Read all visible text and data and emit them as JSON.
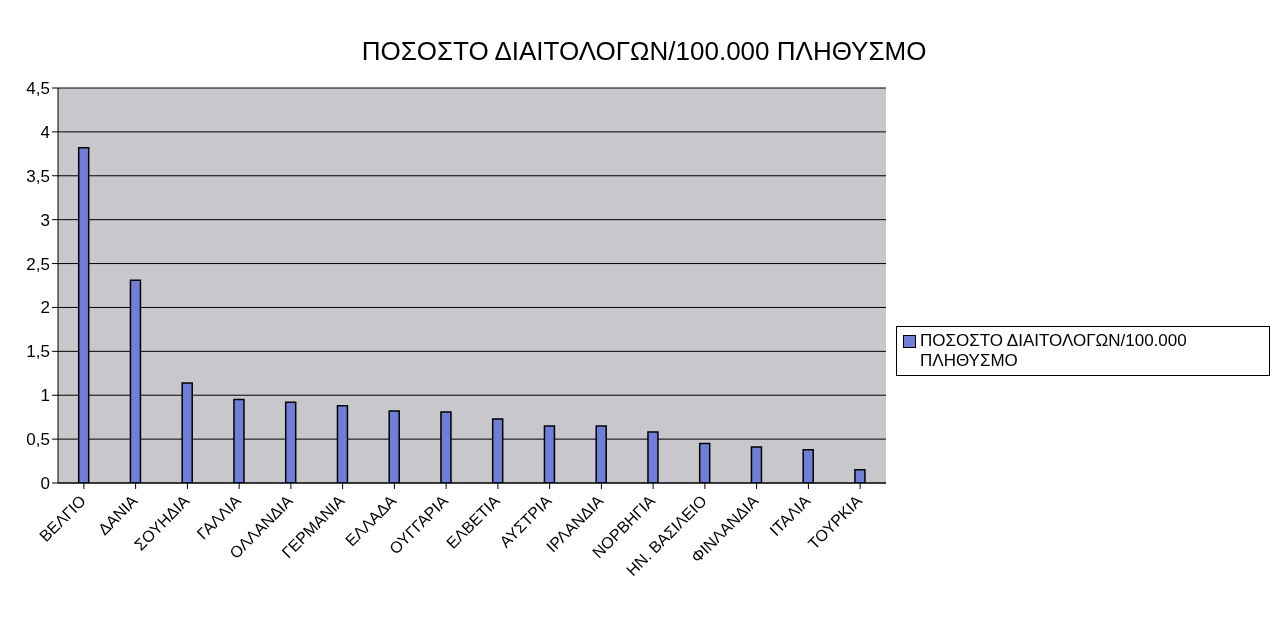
{
  "chart_data": {
    "type": "bar",
    "title": "ΠΟΣΟΣΤΟ ΔΙΑΙΤΟΛΟΓΩΝ/100.000 ΠΛΗΘΥΣΜΟ",
    "categories": [
      "ΒΕΛΓΙΟ",
      "ΔΑΝΙΑ",
      "ΣΟΥΗΔΙΑ",
      "ΓΑΛΛΙΑ",
      "ΟΛΛΑΝΔΙΑ",
      "ΓΕΡΜΑΝΙΑ",
      "ΕΛΛΑΔΑ",
      "ΟΥΓΓΑΡΙΑ",
      "ΕΛΒΕΤΙΑ",
      "ΑΥΣΤΡΙΑ",
      "ΙΡΛΑΝΔΙΑ",
      "ΝΟΡΒΗΓΙΑ",
      "ΗΝ. ΒΑΣΙΛΕΙΟ",
      "ΦΙΝΛΑΝΔΙΑ",
      "ΙΤΑΛΙΑ",
      "ΤΟΥΡΚΙΑ"
    ],
    "series": [
      {
        "name": "ΠΟΣΟΣΤΟ ΔΙΑΙΤΟΛΟΓΩΝ/100.000 ΠΛΗΘΥΣΜΟ",
        "color": "#6f7fd8",
        "values": [
          3.82,
          2.31,
          1.14,
          0.95,
          0.92,
          0.88,
          0.82,
          0.81,
          0.73,
          0.65,
          0.65,
          0.58,
          0.45,
          0.41,
          0.38,
          0.15
        ]
      }
    ],
    "ylim": [
      0,
      4.5
    ],
    "yticks": [
      0,
      {
        "value": 0.5,
        "label": "0,5"
      },
      1,
      {
        "value": 1.5,
        "label": "1,5"
      },
      2,
      {
        "value": 2.5,
        "label": "2,5"
      },
      3,
      {
        "value": 3.5,
        "label": "3,5"
      },
      4,
      {
        "value": 4.5,
        "label": "4,5"
      }
    ],
    "grid": "y",
    "legend": "right"
  }
}
